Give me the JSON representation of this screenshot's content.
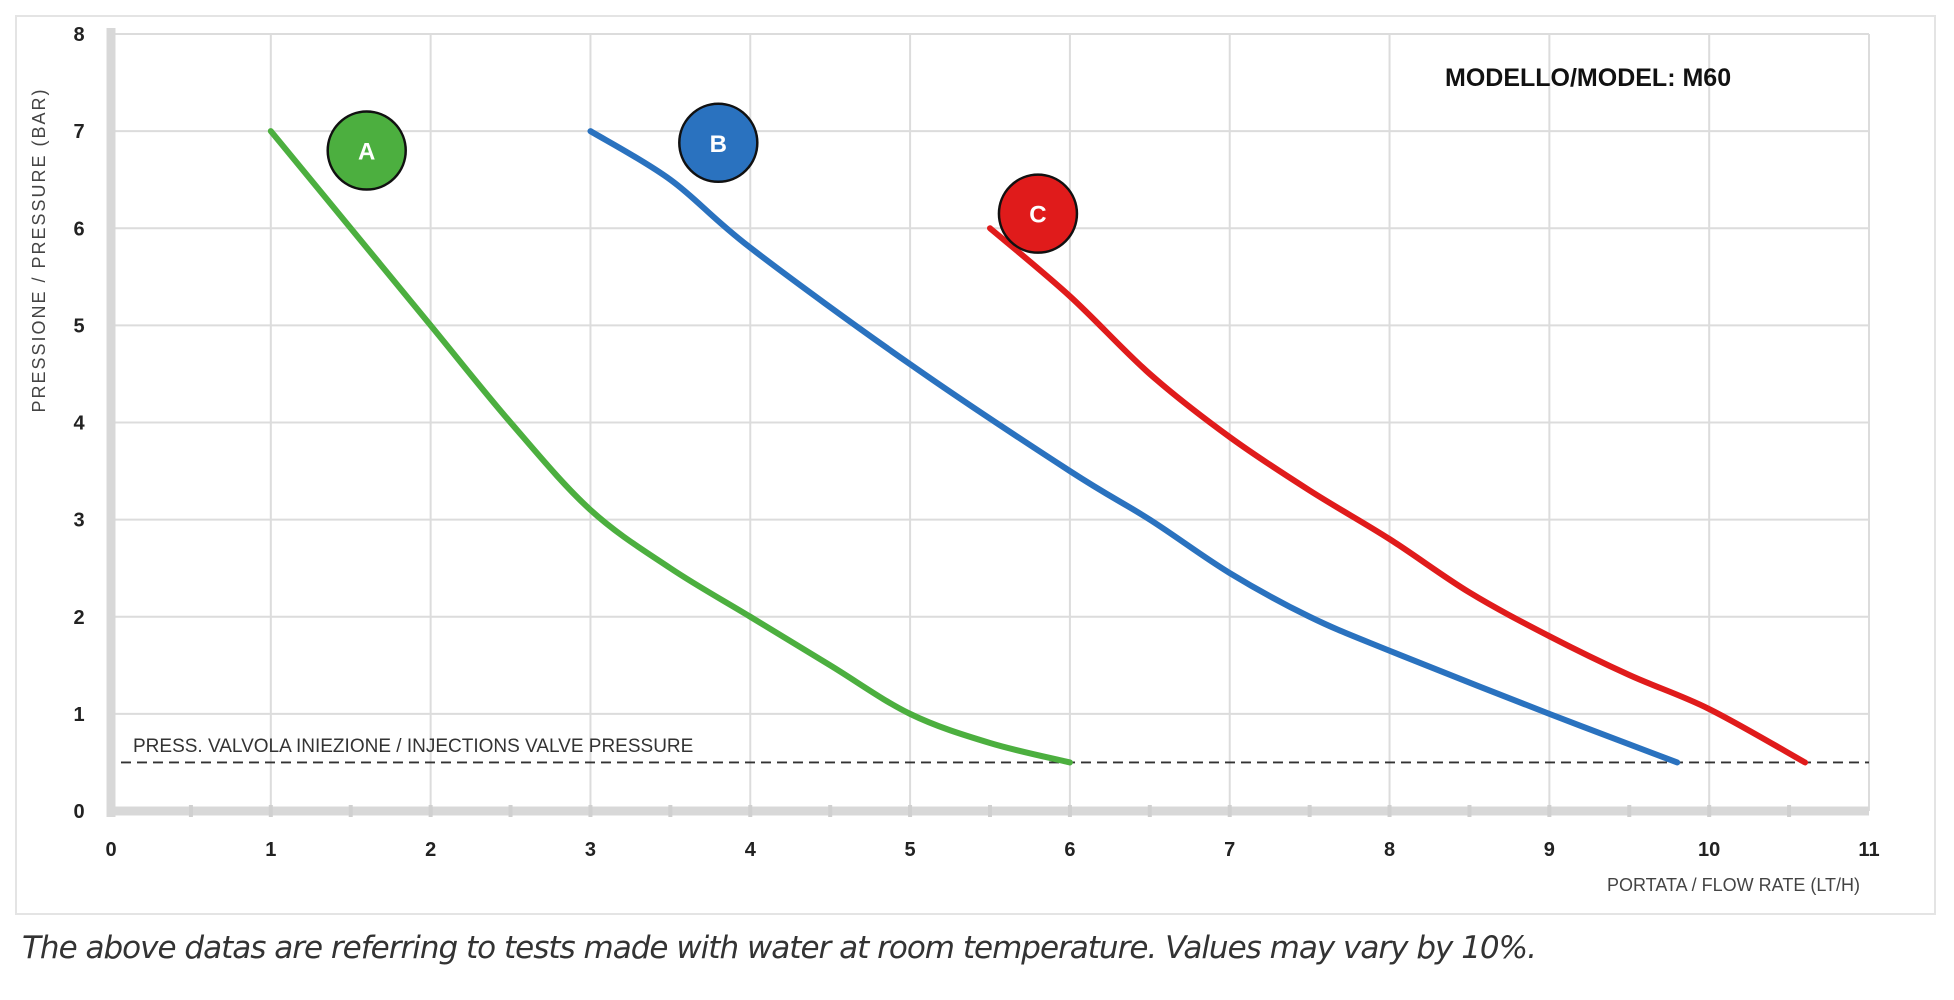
{
  "chart_data": {
    "type": "line",
    "title": "MODELLO/MODEL: M60",
    "xlabel": "PORTATA / FLOW RATE (LT/H)",
    "ylabel": "PRESSIONE / PRESSURE (BAR)",
    "xlim": [
      0,
      11
    ],
    "ylim": [
      0,
      8
    ],
    "xticks": [
      0,
      1,
      2,
      3,
      4,
      5,
      6,
      7,
      8,
      9,
      10,
      11
    ],
    "yticks": [
      0,
      1,
      2,
      3,
      4,
      5,
      6,
      7,
      8
    ],
    "grid": true,
    "reference_line": {
      "y": 0.5,
      "label": "PRESS. VALVOLA INIEZIONE / INJECTIONS VALVE PRESSURE",
      "style": "dashed",
      "color": "#333333"
    },
    "series": [
      {
        "name": "A",
        "color": "#4caf3f",
        "x": [
          1,
          1.5,
          2,
          2.5,
          3,
          3.5,
          4,
          4.5,
          5,
          5.5,
          6
        ],
        "y": [
          7,
          6,
          5,
          4,
          3.1,
          2.5,
          2,
          1.5,
          1,
          0.7,
          0.5
        ],
        "label_pos": [
          1.6,
          6.8
        ]
      },
      {
        "name": "B",
        "color": "#2a72bf",
        "x": [
          3,
          3.5,
          4,
          5,
          6,
          6.5,
          7,
          7.5,
          8,
          9,
          9.8
        ],
        "y": [
          7,
          6.5,
          5.8,
          4.6,
          3.5,
          3,
          2.45,
          2,
          1.65,
          1,
          0.5
        ],
        "label_pos": [
          3.8,
          6.88
        ]
      },
      {
        "name": "C",
        "color": "#e01b1b",
        "x": [
          5.5,
          6,
          6.5,
          7,
          7.5,
          8,
          8.5,
          9,
          9.5,
          10,
          10.6
        ],
        "y": [
          6,
          5.3,
          4.5,
          3.85,
          3.3,
          2.8,
          2.25,
          1.8,
          1.4,
          1.05,
          0.5
        ],
        "label_pos": [
          5.8,
          6.15
        ]
      }
    ]
  },
  "caption": "The above datas are referring to tests made with water at room temperature. Values may vary by 10%."
}
